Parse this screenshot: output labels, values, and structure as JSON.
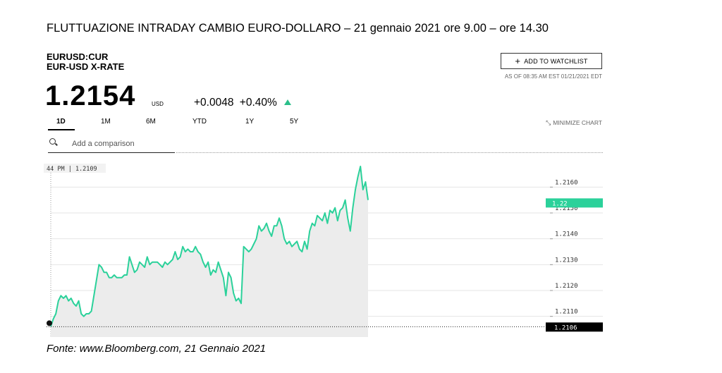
{
  "caption": {
    "title": "FLUTTUAZIONE INTRADAY CAMBIO EURO-DOLLARO – 21 gennaio 2021 ore 9.00 – ore 14.30",
    "source": "Fonte: www.Bloomberg.com,  21 Gennaio 2021"
  },
  "header": {
    "ticker": "EURUSD:CUR",
    "name": "EUR-USD X-RATE",
    "price": "1.2154",
    "currency": "USD",
    "change_abs": "+0.0048",
    "change_pct": "+0.40%",
    "watchlist_label": "ADD TO WATCHLIST",
    "as_of": "AS OF 08:35 AM EST 01/21/2021 EDT",
    "minimize_label": "MINIMIZE CHART"
  },
  "tabs": [
    {
      "label": "1D",
      "active": true
    },
    {
      "label": "1M",
      "active": false
    },
    {
      "label": "6M",
      "active": false
    },
    {
      "label": "YTD",
      "active": false
    },
    {
      "label": "1Y",
      "active": false
    },
    {
      "label": "5Y",
      "active": false
    }
  ],
  "search": {
    "placeholder": "Add a comparison"
  },
  "colors": {
    "line": "#2bd19a",
    "area": "#ececec",
    "badge_current": "#2bd19a",
    "badge_open": "#000000",
    "accent_up": "#2bbf8a"
  },
  "chart_data": {
    "type": "line",
    "tooltip_text": "44 PM | 1.2109",
    "ylim": [
      1.2102,
      1.2171
    ],
    "y_ticks": [
      1.211,
      1.212,
      1.213,
      1.214,
      1.215,
      1.216
    ],
    "y_tick_labels": [
      "1.2110",
      "1.2120",
      "1.2130",
      "1.2140",
      "1.2150",
      "1.2160"
    ],
    "current_label": "1.22",
    "current_value": 1.2154,
    "open_label": "1.2106",
    "open_value": 1.2106,
    "grid": true,
    "y": [
      1.2106,
      1.2109,
      1.2111,
      1.2116,
      1.2118,
      1.2117,
      1.2118,
      1.2116,
      1.2117,
      1.2115,
      1.2114,
      1.2116,
      1.2111,
      1.211,
      1.2111,
      1.2111,
      1.2112,
      1.2118,
      1.2124,
      1.213,
      1.2129,
      1.2127,
      1.2127,
      1.2125,
      1.2125,
      1.2126,
      1.2125,
      1.2125,
      1.2125,
      1.2126,
      1.2126,
      1.2133,
      1.213,
      1.2127,
      1.2128,
      1.2131,
      1.213,
      1.2129,
      1.2133,
      1.213,
      1.2131,
      1.2131,
      1.2131,
      1.213,
      1.2129,
      1.2131,
      1.213,
      1.2131,
      1.2132,
      1.2135,
      1.2132,
      1.2133,
      1.2137,
      1.2135,
      1.2136,
      1.2135,
      1.2135,
      1.2137,
      1.2135,
      1.2134,
      1.2131,
      1.2129,
      1.2131,
      1.2126,
      1.2128,
      1.2127,
      1.2131,
      1.2128,
      1.2125,
      1.2118,
      1.2127,
      1.2125,
      1.2119,
      1.2116,
      1.2117,
      1.2115,
      1.2137,
      1.2136,
      1.2135,
      1.2136,
      1.2138,
      1.214,
      1.2145,
      1.2143,
      1.2144,
      1.2146,
      1.2143,
      1.2141,
      1.2145,
      1.2145,
      1.2148,
      1.2145,
      1.214,
      1.2138,
      1.2139,
      1.2137,
      1.2138,
      1.2139,
      1.2136,
      1.2135,
      1.2139,
      1.2136,
      1.2143,
      1.2146,
      1.2145,
      1.2149,
      1.2148,
      1.2147,
      1.215,
      1.2146,
      1.2151,
      1.215,
      1.2152,
      1.2147,
      1.2151,
      1.2152,
      1.2155,
      1.2148,
      1.2143,
      1.2152,
      1.2159,
      1.2164,
      1.2168,
      1.2159,
      1.2162,
      1.2155
    ]
  }
}
